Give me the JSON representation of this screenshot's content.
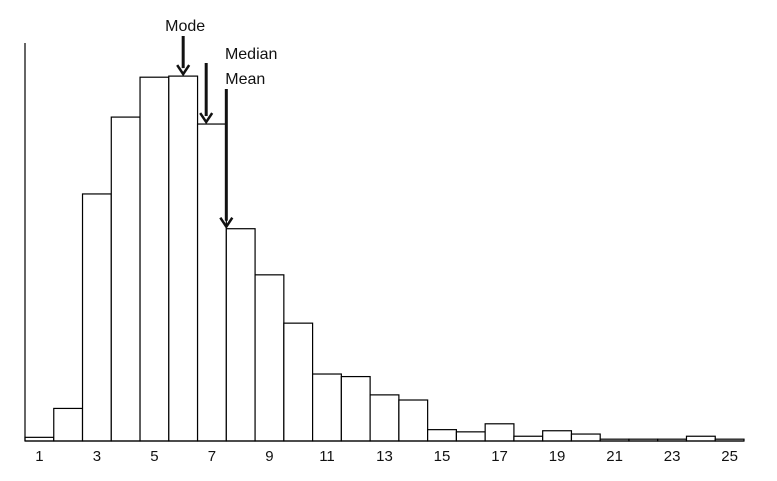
{
  "chart_data": {
    "type": "bar",
    "title": "",
    "xlabel": "",
    "ylabel": "",
    "x": [
      1,
      2,
      3,
      4,
      5,
      6,
      7,
      8,
      9,
      10,
      11,
      12,
      13,
      14,
      15,
      16,
      17,
      18,
      19,
      20,
      21,
      22,
      23,
      24,
      25
    ],
    "values": [
      1,
      8.9,
      67.5,
      88.5,
      99.4,
      99.7,
      86.6,
      58,
      45.4,
      32.2,
      18.3,
      17.6,
      12.6,
      11.2,
      3.1,
      2.5,
      4.7,
      1.3,
      2.8,
      1.9,
      0.5,
      0.5,
      0.5,
      1.3,
      0.5
    ],
    "xticks": [
      "1",
      "3",
      "5",
      "7",
      "9",
      "11",
      "13",
      "15",
      "17",
      "19",
      "21",
      "23",
      "25"
    ],
    "xlim": [
      0.5,
      25.5
    ],
    "ylim": [
      0,
      100
    ],
    "grid": false,
    "annotations": [
      {
        "label": "Mode",
        "x": 6
      },
      {
        "label": "Median",
        "x": 6.8
      },
      {
        "label": "Mean",
        "x": 7.5
      }
    ],
    "colors": {
      "bar_fill": "#ffffff",
      "bar_stroke": "#000000",
      "axis": "#000000"
    }
  }
}
